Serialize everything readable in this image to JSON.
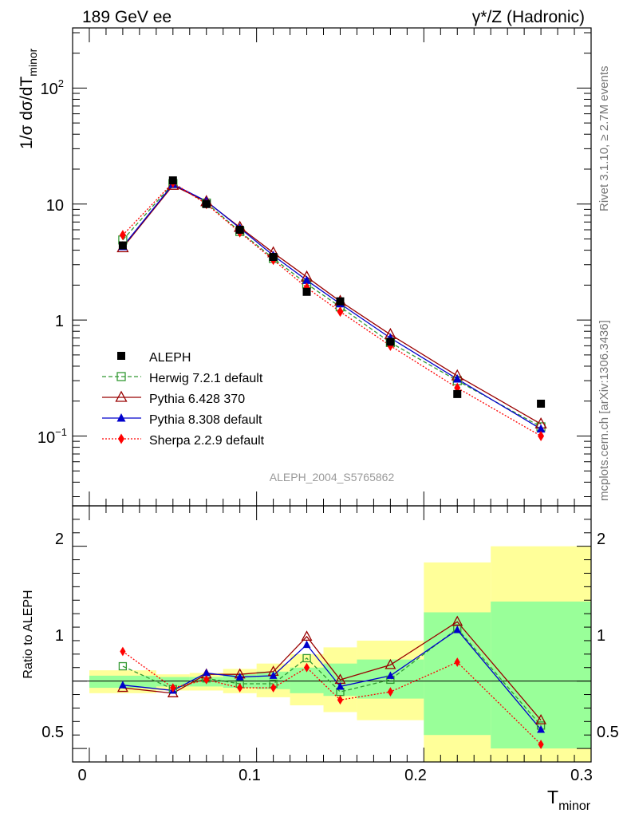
{
  "header": {
    "left": "189 GeV ee",
    "right": "γ*/Z (Hadronic)"
  },
  "side_labels": {
    "rivet": "Rivet 3.1.10, ≥ 2.7M events",
    "mcplots": "mcplots.cern.ch [arXiv:1306.3436]"
  },
  "analysis_label": "ALEPH_2004_S5765862",
  "colors": {
    "aleph": "#000000",
    "herwig": "#339933",
    "pythia6": "#990000",
    "pythia8": "#0000cc",
    "sherpa": "#ff0000",
    "band_outer": "#ffff99",
    "band_inner": "#99ff99"
  },
  "chart_data": {
    "type": "scatter",
    "bin_edges": [
      0.0,
      0.04,
      0.06,
      0.08,
      0.1,
      0.12,
      0.14,
      0.16,
      0.2,
      0.24,
      0.3
    ],
    "x": [
      0.02,
      0.05,
      0.07,
      0.09,
      0.11,
      0.13,
      0.15,
      0.18,
      0.22,
      0.27
    ],
    "xlim": [
      -0.01,
      0.3
    ],
    "xticks": [
      "0",
      "0.1",
      "0.2",
      "0.3"
    ],
    "xlabel_main": "T",
    "xlabel_sub": "minor",
    "main": {
      "ylabel_prefix": "1/σ  dσ/dT",
      "ylabel_sub": "minor",
      "yscale": "log",
      "ylim": [
        0.025,
        330
      ],
      "yticks": [
        "10",
        "1",
        "10"
      ],
      "series": [
        {
          "name": "ALEPH",
          "key": "aleph",
          "values": [
            4.4,
            16.0,
            10.0,
            6.0,
            3.5,
            1.75,
            1.45,
            0.65,
            0.23,
            0.19
          ]
        },
        {
          "name": "Herwig 7.2.1 default",
          "key": "herwig",
          "values": [
            4.9,
            15.0,
            10.2,
            5.8,
            3.4,
            2.05,
            1.3,
            0.64,
            0.3,
            0.12
          ]
        },
        {
          "name": "Pythia 6.428 370",
          "key": "pythia6",
          "values": [
            4.2,
            14.5,
            10.5,
            6.3,
            3.8,
            2.35,
            1.45,
            0.75,
            0.33,
            0.127
          ]
        },
        {
          "name": "Pythia 8.308 default",
          "key": "pythia8",
          "values": [
            4.3,
            14.8,
            10.6,
            6.2,
            3.6,
            2.2,
            1.38,
            0.7,
            0.31,
            0.115
          ]
        },
        {
          "name": "Sherpa 2.2.9 default",
          "key": "sherpa",
          "values": [
            5.4,
            15.3,
            10.0,
            5.7,
            3.3,
            1.9,
            1.18,
            0.6,
            0.26,
            0.1
          ]
        }
      ]
    },
    "ratio": {
      "ylabel": "Ratio to ALEPH",
      "ylim": [
        0.4,
        2.3
      ],
      "yticks": [
        "0.5",
        "1",
        "2"
      ],
      "band_outer": [
        [
          0.91,
          1.08
        ],
        [
          0.93,
          1.05
        ],
        [
          0.93,
          1.06
        ],
        [
          0.91,
          1.09
        ],
        [
          0.88,
          1.13
        ],
        [
          0.82,
          1.2
        ],
        [
          0.77,
          1.25
        ],
        [
          0.71,
          1.3
        ],
        [
          0.4,
          1.88
        ],
        [
          0.4,
          2.0
        ]
      ],
      "band_inner": [
        [
          0.95,
          1.04
        ],
        [
          0.96,
          1.03
        ],
        [
          0.96,
          1.03
        ],
        [
          0.95,
          1.05
        ],
        [
          0.94,
          1.07
        ],
        [
          0.91,
          1.1
        ],
        [
          0.89,
          1.13
        ],
        [
          0.87,
          1.16
        ],
        [
          0.6,
          1.51
        ],
        [
          0.5,
          1.59
        ]
      ],
      "series": [
        {
          "name": "Herwig 7.2.1 default",
          "key": "herwig",
          "values": [
            1.11,
            0.94,
            1.02,
            0.98,
            0.98,
            1.17,
            0.92,
            1.01,
            1.39,
            0.67
          ]
        },
        {
          "name": "Pythia 6.428 370",
          "key": "pythia6",
          "values": [
            0.95,
            0.91,
            1.05,
            1.05,
            1.07,
            1.33,
            1.01,
            1.12,
            1.44,
            0.71
          ]
        },
        {
          "name": "Pythia 8.308 default",
          "key": "pythia8",
          "values": [
            0.97,
            0.93,
            1.06,
            1.03,
            1.04,
            1.27,
            0.96,
            1.04,
            1.38,
            0.64
          ]
        },
        {
          "name": "Sherpa 2.2.9 default",
          "key": "sherpa",
          "values": [
            1.22,
            0.95,
            1.01,
            0.95,
            0.95,
            1.1,
            0.86,
            0.92,
            1.14,
            0.53
          ]
        }
      ]
    }
  }
}
